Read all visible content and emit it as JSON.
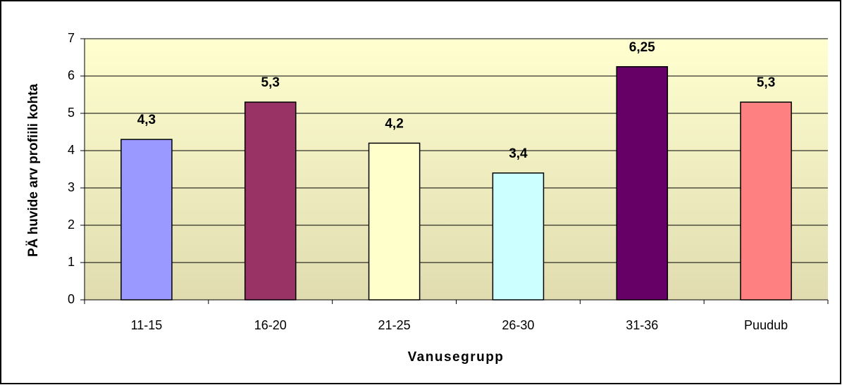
{
  "chart_data": {
    "type": "bar",
    "x_label": "Vanusegrupp",
    "y_label": "PÄ huvide arv profiili kohta",
    "categories": [
      "11-15",
      "16-20",
      "21-25",
      "26-30",
      "31-36",
      "Puudub"
    ],
    "values": [
      4.3,
      5.3,
      4.2,
      3.4,
      6.25,
      5.3
    ],
    "value_labels": [
      "4,3",
      "5,3",
      "4,2",
      "3,4",
      "6,25",
      "5,3"
    ],
    "colors": [
      "#9999ff",
      "#993366",
      "#ffffcc",
      "#ccffff",
      "#660066",
      "#ff8080"
    ],
    "ylim": [
      0,
      7
    ],
    "yticks": [
      0,
      1,
      2,
      3,
      4,
      5,
      6,
      7
    ],
    "grid": true
  }
}
